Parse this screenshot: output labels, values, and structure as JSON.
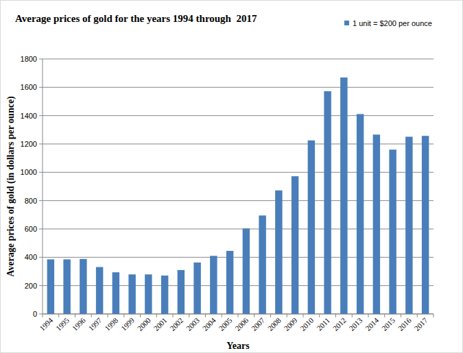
{
  "chart_data": {
    "type": "bar",
    "title": "Average prices of gold for the years 1994 through  2017",
    "x_label": "Years",
    "y_label": "Average prices of gold (in dollars per ounce)",
    "categories": [
      "1994",
      "1995",
      "1996",
      "1997",
      "1998",
      "1999",
      "2000",
      "2001",
      "2002",
      "2003",
      "2004",
      "2005",
      "2006",
      "2007",
      "2008",
      "2009",
      "2010",
      "2011",
      "2012",
      "2013",
      "2014",
      "2015",
      "2016",
      "2017"
    ],
    "series": [
      {
        "name": "1 unit = $200 per ounce",
        "color": "#4a7ebb",
        "values": [
          385,
          385,
          388,
          331,
          294,
          279,
          279,
          271,
          310,
          363,
          410,
          445,
          603,
          695,
          872,
          972,
          1225,
          1572,
          1669,
          1411,
          1266,
          1160,
          1251,
          1257
        ]
      }
    ],
    "ylim": [
      0,
      1800
    ],
    "yticks": [
      0,
      200,
      400,
      600,
      800,
      1000,
      1200,
      1400,
      1600,
      1800
    ],
    "grid": true,
    "legend": "top-right"
  }
}
